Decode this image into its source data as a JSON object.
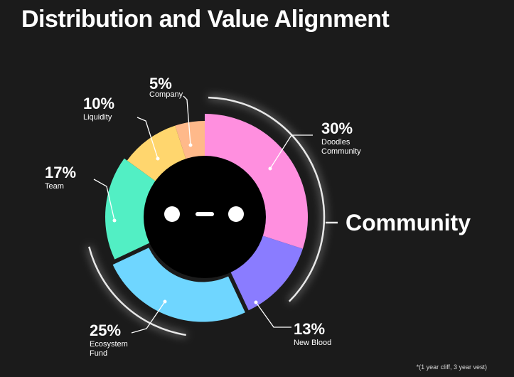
{
  "title": "Distribution and Value Alignment",
  "footnote": "*(1 year cliff, 3 year vest)",
  "chart_data": {
    "type": "pie",
    "variant": "donut",
    "title": "Distribution and Value Alignment",
    "slices": [
      {
        "percent_label": "30%",
        "label": "Doodles",
        "label2": "Community",
        "value": 30,
        "color": "#ff8fdf"
      },
      {
        "percent_label": "13%",
        "label": "New Blood",
        "label2": "",
        "value": 13,
        "color": "#8a7cff"
      },
      {
        "percent_label": "25%",
        "label": "Ecosystem",
        "label2": "Fund",
        "value": 25,
        "color": "#6fd6ff"
      },
      {
        "percent_label": "17%",
        "label": "Team",
        "label2": "",
        "value": 17,
        "color": "#52efc4"
      },
      {
        "percent_label": "10%",
        "label": "Liquidity",
        "label2": "",
        "value": 10,
        "color": "#ffd66e"
      },
      {
        "percent_label": "5%",
        "label": "Company",
        "label2": "",
        "value": 5,
        "color": "#ffb98a"
      }
    ],
    "group_label": "Community"
  },
  "center_icon": "doodles-face-icon"
}
